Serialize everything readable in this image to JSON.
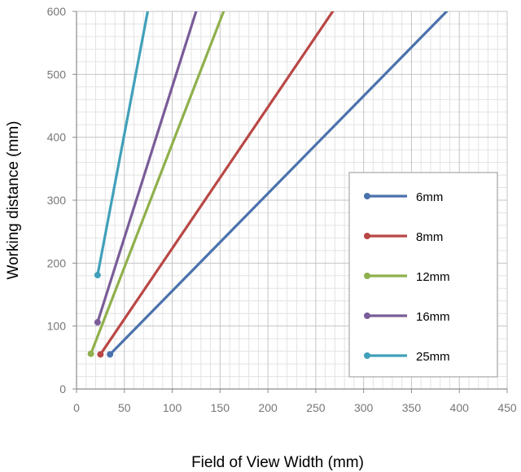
{
  "chart_data": {
    "type": "line",
    "xlabel": "Field of View Width (mm)",
    "ylabel": "Working distance (mm)",
    "xlim": [
      0,
      450
    ],
    "ylim": [
      0,
      600
    ],
    "x_ticks": [
      0,
      50,
      100,
      150,
      200,
      250,
      300,
      350,
      400,
      450
    ],
    "y_ticks": [
      0,
      100,
      200,
      300,
      400,
      500,
      600
    ],
    "grid": true,
    "legend_position": "right",
    "series": [
      {
        "name": "6mm",
        "color": "#4a72ac",
        "points": [
          [
            35,
            55
          ],
          [
            390,
            605
          ]
        ]
      },
      {
        "name": "8mm",
        "color": "#b94745",
        "points": [
          [
            25,
            55
          ],
          [
            270,
            605
          ]
        ]
      },
      {
        "name": "12mm",
        "color": "#8fb04c",
        "points": [
          [
            15,
            56
          ],
          [
            155,
            605
          ]
        ]
      },
      {
        "name": "16mm",
        "color": "#7a5c98",
        "points": [
          [
            22,
            106
          ],
          [
            126,
            605
          ]
        ]
      },
      {
        "name": "25mm",
        "color": "#41a0b9",
        "points": [
          [
            22,
            181
          ],
          [
            75,
            605
          ]
        ]
      }
    ]
  }
}
